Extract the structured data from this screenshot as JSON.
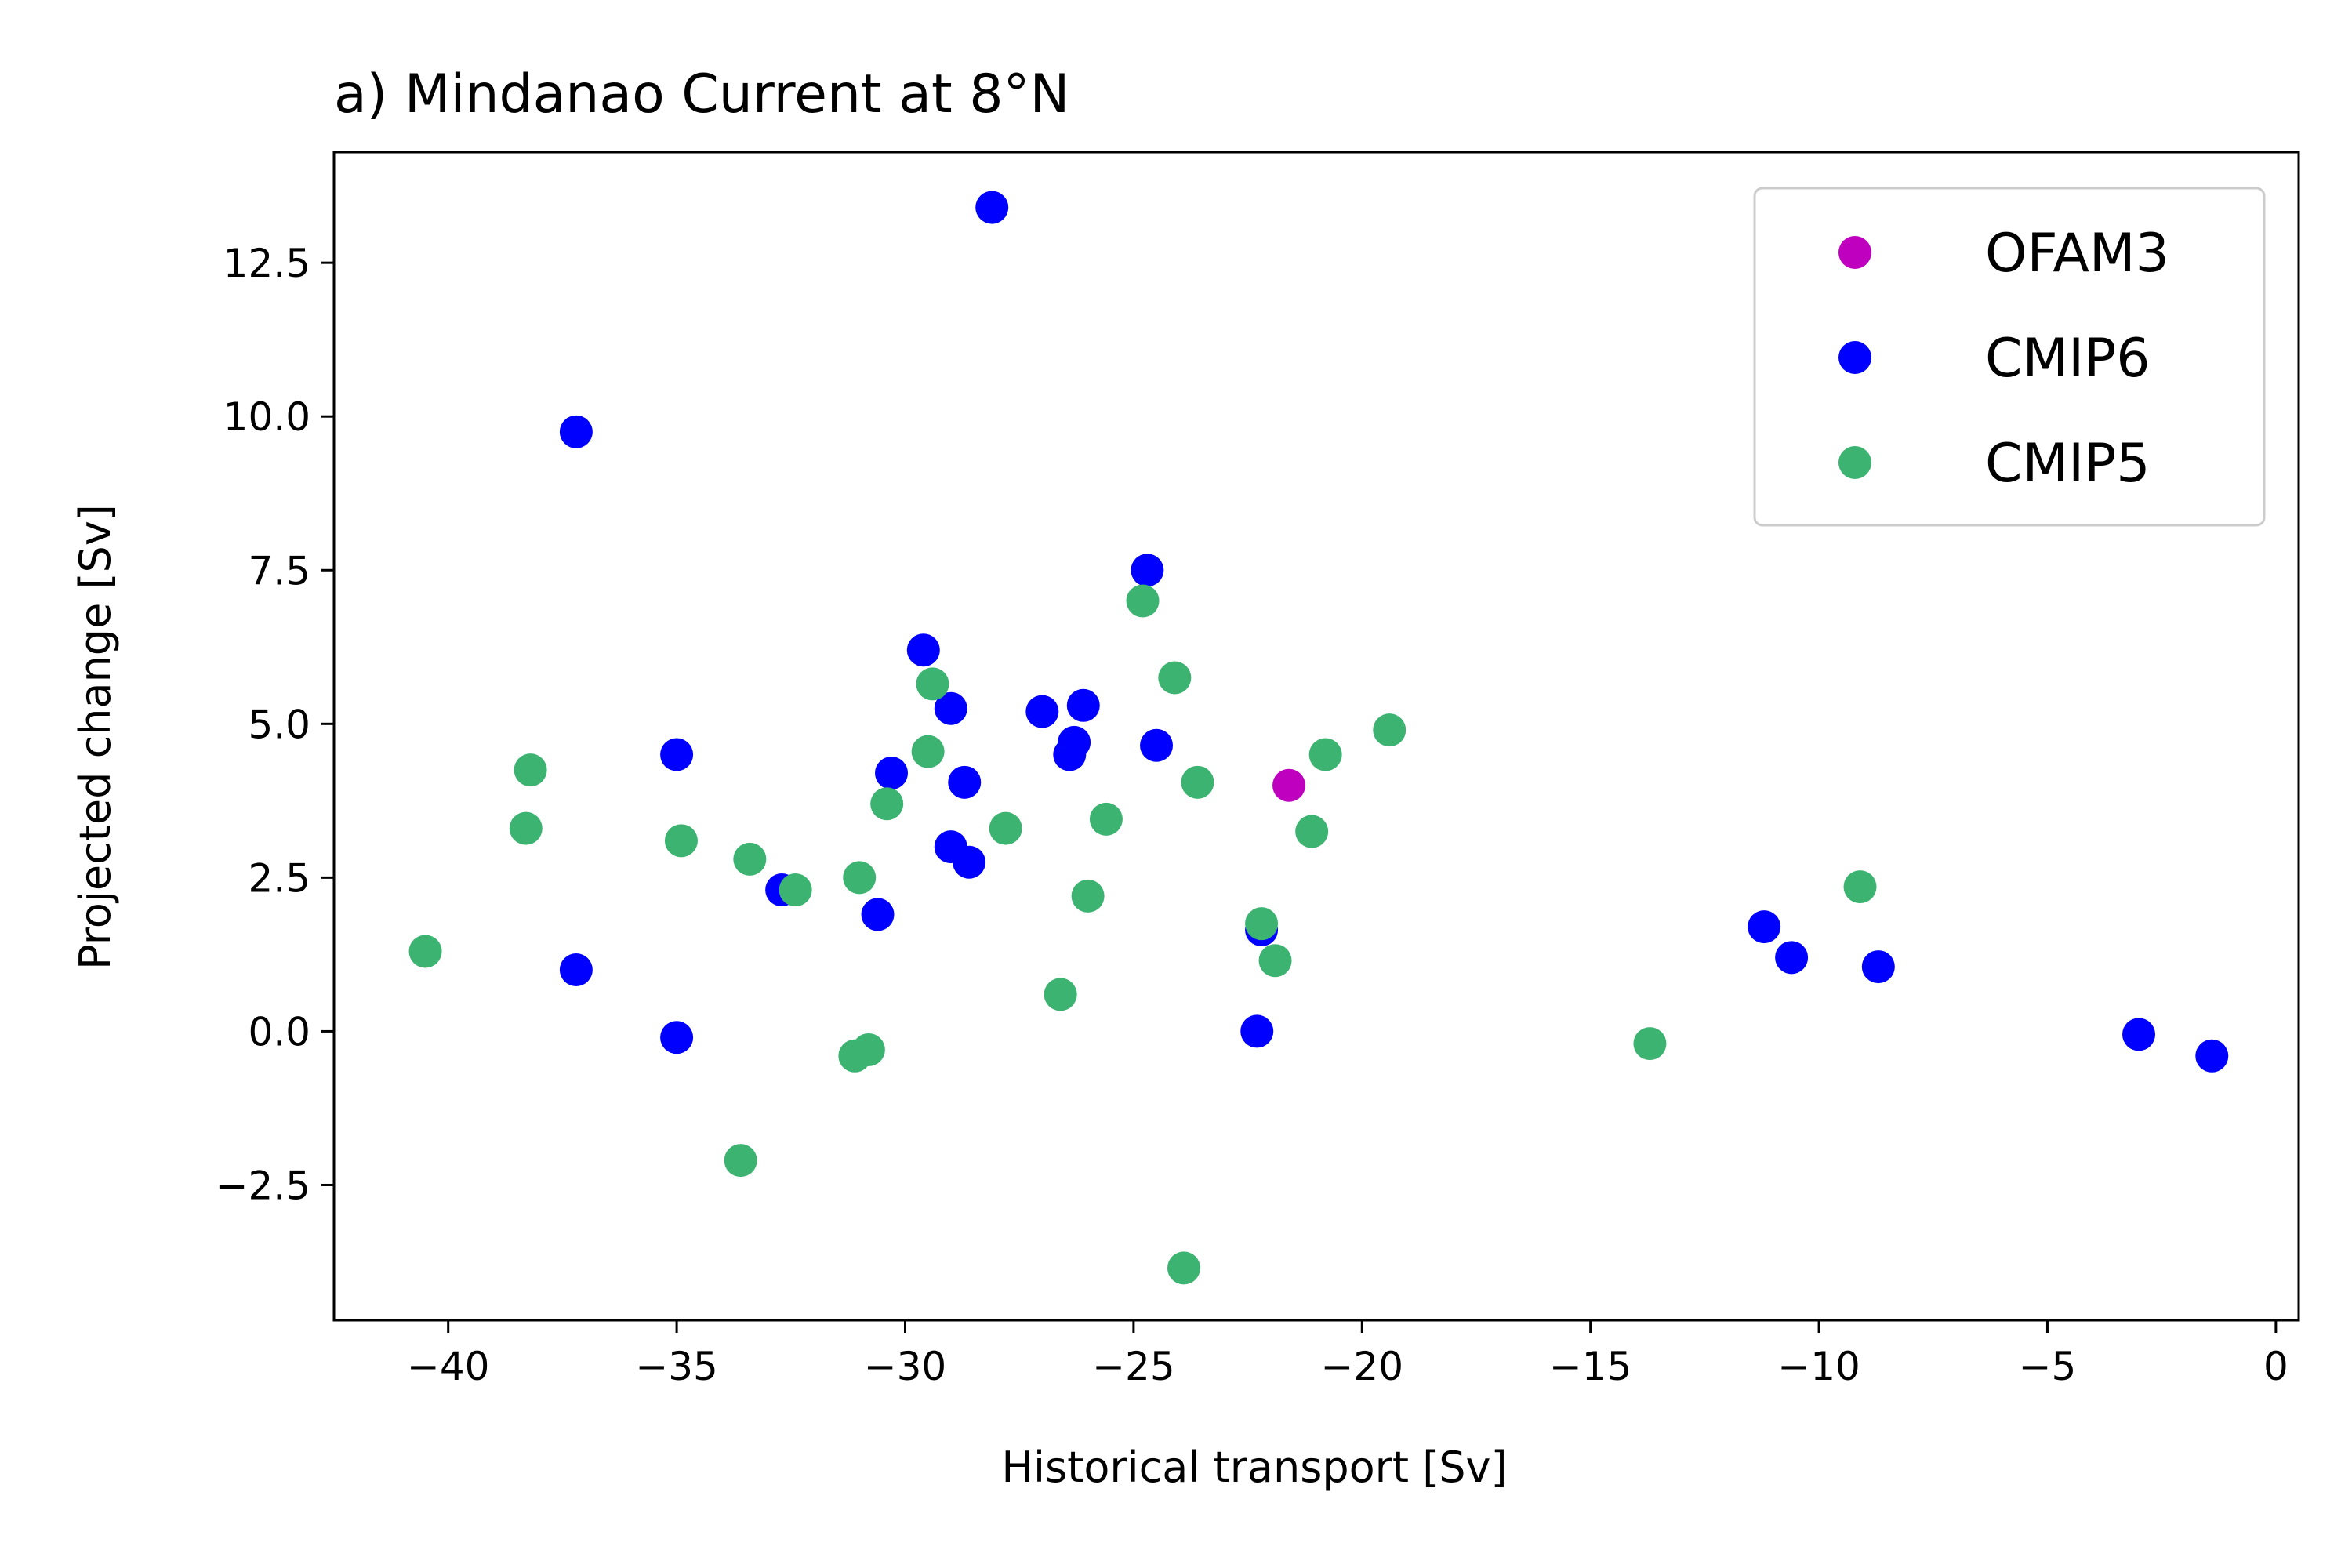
{
  "chart_data": {
    "type": "scatter",
    "title": "a) Mindanao Current at 8°N",
    "xlabel": "Historical transport [Sv]",
    "ylabel": "Projected change [Sv]",
    "xlim": [
      -42.5,
      0.5
    ],
    "ylim": [
      -4.7,
      14.3
    ],
    "xticks": [
      -40,
      -35,
      -30,
      -25,
      -20,
      -15,
      -10,
      -5,
      0
    ],
    "yticks": [
      -2.5,
      0.0,
      2.5,
      5.0,
      7.5,
      10.0,
      12.5
    ],
    "xtick_labels": [
      "−40",
      "−35",
      "−30",
      "−25",
      "−20",
      "−15",
      "−10",
      "−5",
      "0"
    ],
    "ytick_labels": [
      "−2.5",
      "0.0",
      "2.5",
      "5.0",
      "7.5",
      "10.0",
      "12.5"
    ],
    "grid": false,
    "legend_position": "top-right",
    "series": [
      {
        "name": "OFAM3",
        "color": "#bf00bf",
        "x": [
          -21.6
        ],
        "y": [
          4.0
        ]
      },
      {
        "name": "CMIP6",
        "color": "#0000ff",
        "x": [
          -28.1,
          -37.2,
          -24.7,
          -29.6,
          -29.0,
          -27.0,
          -26.1,
          -26.3,
          -26.4,
          -24.5,
          -35.0,
          -30.3,
          -28.7,
          -29.0,
          -28.6,
          -32.7,
          -30.6,
          -37.2,
          -35.0,
          -22.2,
          -22.3,
          -11.2,
          -10.6,
          -8.7,
          -3.0,
          -1.4
        ],
        "y": [
          13.4,
          9.75,
          7.5,
          6.2,
          5.25,
          5.2,
          5.3,
          4.7,
          4.5,
          4.65,
          4.5,
          4.2,
          4.05,
          3.0,
          2.75,
          2.3,
          1.9,
          1.0,
          -0.1,
          1.65,
          0.0,
          1.7,
          1.2,
          1.05,
          -0.05,
          -0.4
        ]
      },
      {
        "name": "CMIP5",
        "color": "#3cb371",
        "x": [
          -24.8,
          -24.1,
          -29.4,
          -29.5,
          -30.4,
          -27.8,
          -25.6,
          -23.6,
          -20.8,
          -19.4,
          -21.1,
          -38.2,
          -38.3,
          -34.9,
          -33.4,
          -32.4,
          -31.0,
          -30.8,
          -31.1,
          -33.6,
          -26.0,
          -26.6,
          -22.2,
          -21.9,
          -23.9,
          -13.7,
          -9.1,
          -40.5
        ],
        "y": [
          7.0,
          5.75,
          5.65,
          4.55,
          3.7,
          3.3,
          3.45,
          4.05,
          4.5,
          4.9,
          3.25,
          4.25,
          3.3,
          3.1,
          2.8,
          2.3,
          2.5,
          -0.3,
          -0.4,
          -2.1,
          2.2,
          0.6,
          1.75,
          1.15,
          -3.85,
          -0.2,
          2.35,
          1.3
        ]
      }
    ]
  }
}
